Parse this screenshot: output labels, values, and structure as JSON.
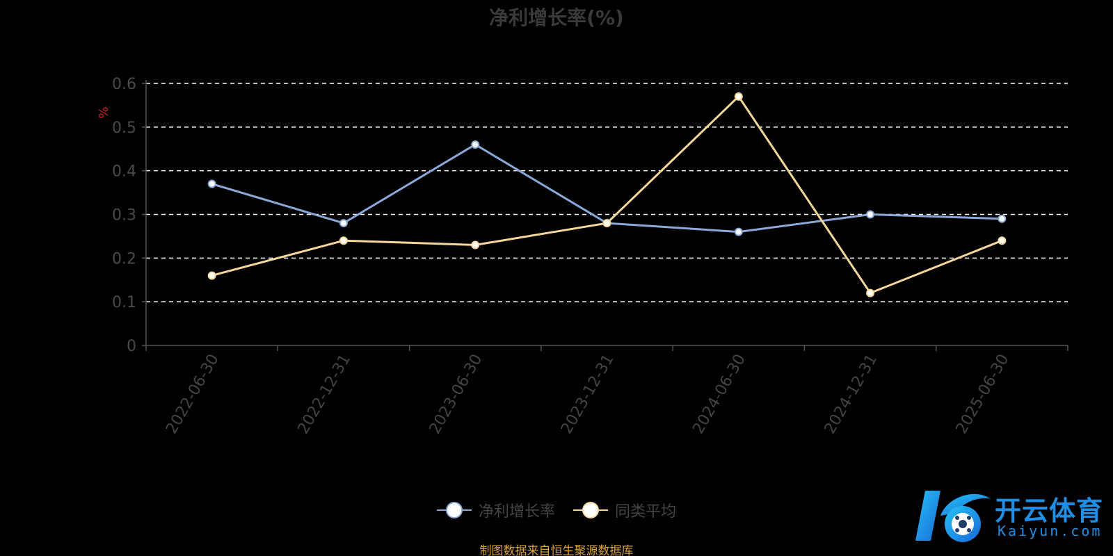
{
  "chart_data": {
    "type": "line",
    "title": "净利增长率(%)",
    "ylabel": "%",
    "xlabel": "",
    "ylim": [
      0,
      0.6
    ],
    "yticks": [
      "0",
      "0.1",
      "0.2",
      "0.3",
      "0.4",
      "0.5",
      "0.6"
    ],
    "categories": [
      "2022-06-30",
      "2022-12-31",
      "2023-06-30",
      "2023-12-31",
      "2024-06-30",
      "2024-12-31",
      "2025-06-30"
    ],
    "grid": true,
    "legend_position": "bottom",
    "series": [
      {
        "name": "净利增长率",
        "color": "#8aa8d8",
        "values": [
          0.37,
          0.28,
          0.46,
          0.28,
          0.26,
          0.3,
          0.29
        ]
      },
      {
        "name": "同类平均",
        "color": "#f7d79a",
        "values": [
          0.16,
          0.24,
          0.23,
          0.28,
          0.57,
          0.12,
          0.24
        ]
      }
    ]
  },
  "footer": "制图数据来自恒生聚源数据库",
  "watermark": {
    "cn": "开云体育",
    "en": "Kaiyun.com"
  },
  "colors": {
    "background": "#000000",
    "axis": "#555555",
    "grid": "#ffffff",
    "footer": "#d9a23c",
    "watermark": "#1f8fe6"
  }
}
